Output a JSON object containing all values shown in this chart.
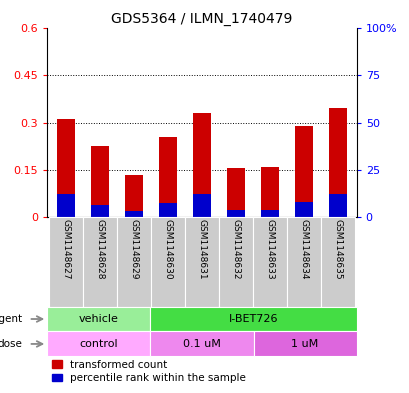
{
  "title": "GDS5364 / ILMN_1740479",
  "samples": [
    "GSM1148627",
    "GSM1148628",
    "GSM1148629",
    "GSM1148630",
    "GSM1148631",
    "GSM1148632",
    "GSM1148633",
    "GSM1148634",
    "GSM1148635"
  ],
  "transformed_count": [
    0.31,
    0.225,
    0.135,
    0.255,
    0.33,
    0.155,
    0.16,
    0.29,
    0.345
  ],
  "percentile_rank": [
    0.075,
    0.04,
    0.02,
    0.045,
    0.075,
    0.025,
    0.025,
    0.05,
    0.075
  ],
  "ylim_left": [
    0,
    0.6
  ],
  "ylim_right": [
    0,
    100
  ],
  "yticks_left": [
    0,
    0.15,
    0.3,
    0.45,
    0.6
  ],
  "yticks_right": [
    0,
    25,
    50,
    75,
    100
  ],
  "ytick_labels_left": [
    "0",
    "0.15",
    "0.3",
    "0.45",
    "0.6"
  ],
  "ytick_labels_right": [
    "0",
    "25",
    "50",
    "75",
    "100%"
  ],
  "bar_color_red": "#cc0000",
  "bar_color_blue": "#0000cc",
  "bar_width": 0.55,
  "agent_labels": [
    {
      "text": "vehicle",
      "span": [
        0,
        3
      ],
      "color": "#99ee99"
    },
    {
      "text": "I-BET726",
      "span": [
        3,
        9
      ],
      "color": "#44dd44"
    }
  ],
  "dose_labels": [
    {
      "text": "control",
      "span": [
        0,
        3
      ],
      "color": "#ffaaff"
    },
    {
      "text": "0.1 uM",
      "span": [
        3,
        6
      ],
      "color": "#ee88ee"
    },
    {
      "text": "1 uM",
      "span": [
        6,
        9
      ],
      "color": "#dd66dd"
    }
  ],
  "tick_bg_color": "#cccccc",
  "legend_red_label": "transformed count",
  "legend_blue_label": "percentile rank within the sample",
  "grid_yticks": [
    0.15,
    0.3,
    0.45
  ]
}
